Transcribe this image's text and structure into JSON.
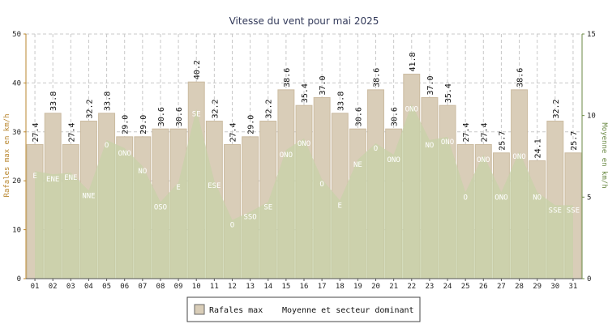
{
  "chart_data": {
    "type": "bar",
    "title": "Vitesse du vent pour mai 2025",
    "ylabel_left": "Rafales max en km/h",
    "ylabel_right": "Moyenne en km/h",
    "ylim_left": [
      0,
      50
    ],
    "ylim_right": [
      0,
      15
    ],
    "yticks_left": [
      "0",
      "10",
      "20",
      "30",
      "40",
      "50"
    ],
    "yticks_right": [
      "0",
      "5",
      "10",
      "15"
    ],
    "categories": [
      "01",
      "02",
      "03",
      "04",
      "05",
      "06",
      "07",
      "08",
      "09",
      "10",
      "11",
      "12",
      "13",
      "14",
      "15",
      "16",
      "17",
      "18",
      "19",
      "20",
      "21",
      "22",
      "23",
      "24",
      "25",
      "26",
      "27",
      "28",
      "29",
      "30",
      "31"
    ],
    "series": [
      {
        "name": "Rafales max",
        "kind": "bar",
        "axis": "left",
        "values": [
          27.4,
          33.8,
          27.4,
          32.2,
          33.8,
          29.0,
          29.0,
          30.6,
          30.6,
          40.2,
          32.2,
          27.4,
          29.0,
          32.2,
          38.6,
          35.4,
          37.0,
          33.8,
          30.6,
          38.6,
          30.6,
          41.8,
          37.0,
          35.4,
          27.4,
          27.4,
          25.7,
          38.6,
          24.1,
          32.2,
          25.7
        ],
        "labels": [
          "27.4",
          "33.8",
          "27.4",
          "32.2",
          "33.8",
          "29.0",
          "29.0",
          "30.6",
          "30.6",
          "40.2",
          "32.2",
          "27.4",
          "29.0",
          "32.2",
          "38.6",
          "35.4",
          "37.0",
          "33.8",
          "30.6",
          "38.6",
          "30.6",
          "41.8",
          "37.0",
          "35.4",
          "27.4",
          "27.4",
          "25.7",
          "38.6",
          "24.1",
          "32.2",
          "25.7"
        ]
      },
      {
        "name": "Moyenne et secteur dominant",
        "kind": "area",
        "axis": "right",
        "values": [
          6.6,
          6.4,
          6.5,
          5.4,
          8.5,
          8.0,
          6.9,
          4.7,
          5.9,
          10.4,
          6.0,
          3.6,
          4.1,
          4.7,
          7.9,
          8.6,
          6.1,
          4.8,
          7.3,
          8.3,
          7.6,
          10.7,
          8.5,
          8.7,
          5.3,
          7.6,
          5.3,
          7.8,
          5.3,
          4.5,
          4.5
        ],
        "sectors": [
          "E",
          "ENE",
          "ENE",
          "NNE",
          "O",
          "ONO",
          "NO",
          "OSO",
          "E",
          "SE",
          "ESE",
          "O",
          "SSO",
          "SE",
          "ONO",
          "ONO",
          "O",
          "E",
          "NE",
          "O",
          "ONO",
          "ONO",
          "NO",
          "ONO",
          "O",
          "ONO",
          "ONO",
          "ONO",
          "NO",
          "SSE",
          "SSE"
        ]
      }
    ],
    "grid": true,
    "legend_position": "bottom-center",
    "colors": {
      "bar_fill": "#d9cdb8",
      "bar_edge": "#cbbba0",
      "area_fill": "#c7d1a8",
      "area_opacity": "0.75",
      "grid": "#c8c8c8",
      "axis_left": "#b8862e",
      "axis_right": "#6b8a45",
      "title": "#333a5a"
    }
  }
}
